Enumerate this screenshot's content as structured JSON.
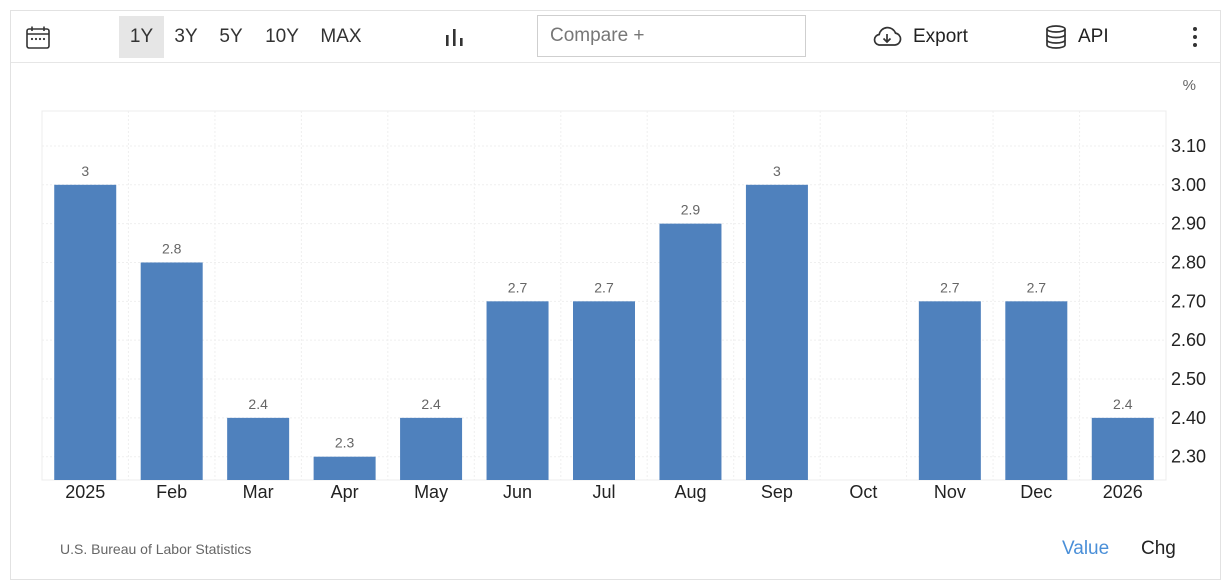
{
  "toolbar": {
    "ranges": [
      "1Y",
      "3Y",
      "5Y",
      "10Y",
      "MAX"
    ],
    "active_range": "1Y",
    "compare_placeholder": "Compare +",
    "export_label": "Export",
    "api_label": "API",
    "icons": [
      "calendar-icon",
      "bar-chart-icon",
      "cloud-download-icon",
      "database-icon",
      "more-vertical-icon"
    ]
  },
  "footer": {
    "source": "U.S. Bureau of Labor Statistics",
    "mode_value": "Value",
    "mode_chg": "Chg",
    "active_mode_color": "#4a8fd8"
  },
  "chart_data": {
    "type": "bar",
    "unit": "%",
    "categories": [
      "2025",
      "Feb",
      "Mar",
      "Apr",
      "May",
      "Jun",
      "Jul",
      "Aug",
      "Sep",
      "Oct",
      "Nov",
      "Dec",
      "2026"
    ],
    "values": [
      3,
      2.8,
      2.4,
      2.3,
      2.4,
      2.7,
      2.7,
      2.9,
      3,
      null,
      2.7,
      2.7,
      2.4
    ],
    "data_labels": [
      "3",
      "2.8",
      "2.4",
      "2.3",
      "2.4",
      "2.7",
      "2.7",
      "2.9",
      "3",
      "",
      "2.7",
      "2.7",
      "2.4"
    ],
    "y_ticks": [
      "2.30",
      "2.40",
      "2.50",
      "2.60",
      "2.70",
      "2.80",
      "2.90",
      "3.00",
      "3.10"
    ],
    "ylim": [
      2.24,
      3.19
    ],
    "y_axis_side": "right",
    "grid": true,
    "bar_color": "#4f81bd"
  }
}
